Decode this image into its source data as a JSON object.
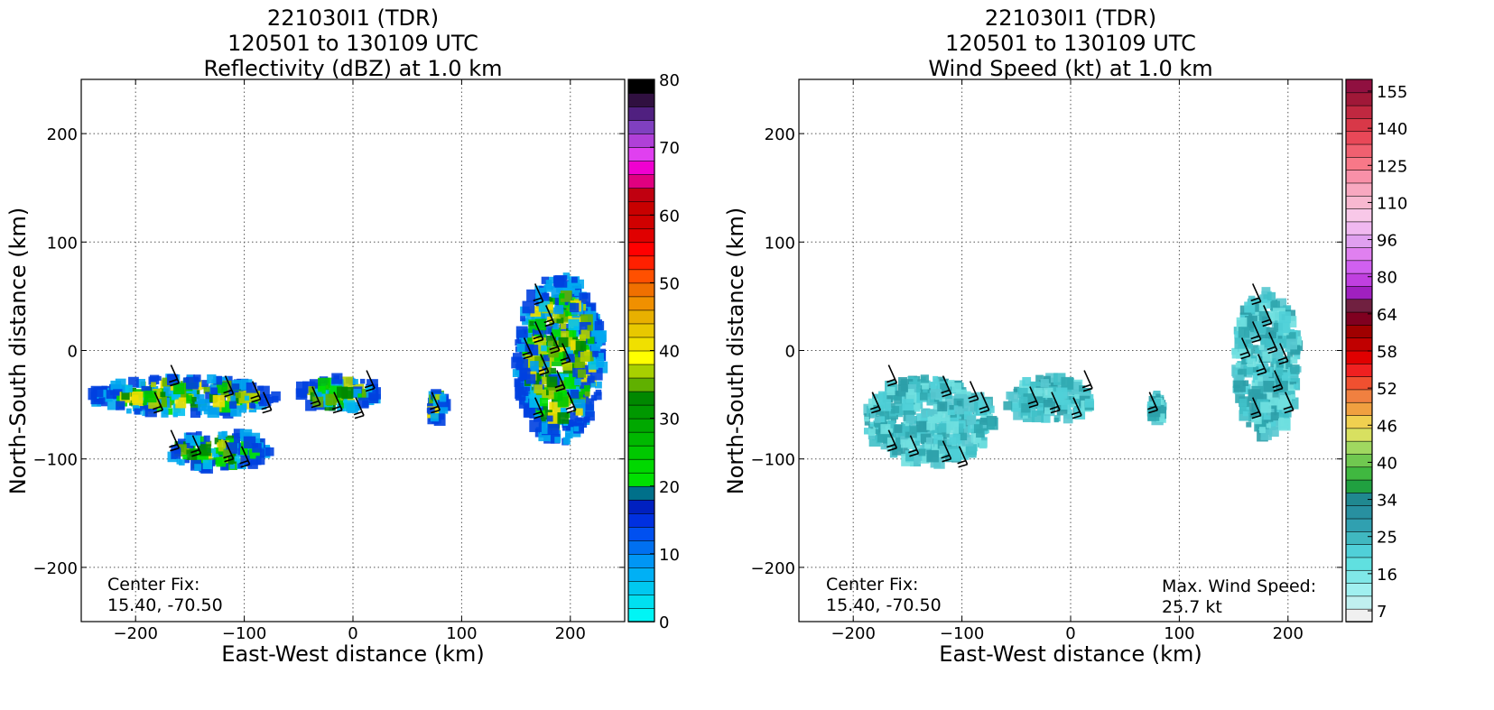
{
  "panels": [
    {
      "id": "reflectivity",
      "title_line1": "221030I1 (TDR)",
      "title_line2": "120501 to 130109 UTC",
      "title_line3": "Reflectivity (dBZ) at 1.0 km",
      "xlabel": "East-West distance (km)",
      "ylabel": "North-South distance (km)",
      "center_fix_label": "Center Fix:",
      "center_fix_value": "15.40, -70.50"
    },
    {
      "id": "windspeed",
      "title_line1": "221030I1 (TDR)",
      "title_line2": "120501 to 130109 UTC",
      "title_line3": "Wind Speed (kt) at 1.0 km",
      "xlabel": "East-West distance (km)",
      "ylabel": "North-South distance (km)",
      "center_fix_label": "Center Fix:",
      "center_fix_value": "15.40, -70.50",
      "max_wind_label": "Max. Wind Speed:",
      "max_wind_value": "25.7 kt"
    }
  ],
  "chart_data": [
    {
      "type": "heatmap",
      "title": "221030I1 (TDR) 120501 to 130109 UTC Reflectivity (dBZ) at 1.0 km",
      "xlabel": "East-West distance (km)",
      "ylabel": "North-South distance (km)",
      "xlim": [
        -250,
        250
      ],
      "ylim": [
        -250,
        250
      ],
      "xticks": [
        -200,
        -100,
        0,
        100,
        200
      ],
      "yticks": [
        -200,
        -100,
        0,
        100,
        200
      ],
      "grid": true,
      "colorbar": {
        "label_values": [
          0,
          10,
          20,
          30,
          40,
          50,
          60,
          70,
          80
        ],
        "range": [
          0,
          80
        ],
        "colors": [
          "#00f5f5",
          "#00e0f0",
          "#00c8f0",
          "#00b0f5",
          "#0096f5",
          "#0070f0",
          "#0050f0",
          "#0030e0",
          "#0020c0",
          "#00708a",
          "#00e000",
          "#00d800",
          "#00c800",
          "#00b800",
          "#00a800",
          "#009800",
          "#008800",
          "#60b000",
          "#a8d000",
          "#ffff00",
          "#f0e000",
          "#e8c800",
          "#e8b000",
          "#f09000",
          "#f07000",
          "#ff5000",
          "#ff2000",
          "#ff0000",
          "#e00000",
          "#d00000",
          "#c80000",
          "#c00010",
          "#e00080",
          "#f000d0",
          "#e040f0",
          "#b040d8",
          "#8040c0",
          "#502080",
          "#301040",
          "#000000"
        ]
      },
      "echo_regions": [
        {
          "x": [
            -240,
            -70
          ],
          "y": [
            -25,
            -60
          ],
          "dbz_range": [
            10,
            35
          ]
        },
        {
          "x": [
            -170,
            -75
          ],
          "y": [
            -75,
            -110
          ],
          "dbz_range": [
            10,
            35
          ]
        },
        {
          "x": [
            -50,
            25
          ],
          "y": [
            -25,
            -55
          ],
          "dbz_range": [
            5,
            35
          ]
        },
        {
          "x": [
            70,
            85
          ],
          "y": [
            -40,
            -65
          ],
          "dbz_range": [
            15,
            40
          ]
        },
        {
          "x": [
            150,
            230
          ],
          "y": [
            70,
            -85
          ],
          "dbz_range": [
            10,
            42
          ]
        }
      ],
      "annotations": [
        "Center Fix:",
        "15.40, -70.50"
      ]
    },
    {
      "type": "heatmap",
      "title": "221030I1 (TDR) 120501 to 130109 UTC Wind Speed (kt) at 1.0 km",
      "xlabel": "East-West distance (km)",
      "ylabel": "North-South distance (km)",
      "xlim": [
        -250,
        250
      ],
      "ylim": [
        -250,
        250
      ],
      "xticks": [
        -200,
        -100,
        0,
        100,
        200
      ],
      "yticks": [
        -200,
        -100,
        0,
        100,
        200
      ],
      "grid": true,
      "colorbar": {
        "label_values": [
          7,
          16,
          25,
          34,
          40,
          46,
          52,
          58,
          64,
          80,
          96,
          110,
          125,
          140,
          155
        ],
        "colors": [
          "#f0f0f0",
          "#c0f0f0",
          "#a0f0f0",
          "#80e8e8",
          "#60e0e0",
          "#50d0d8",
          "#40b8c0",
          "#30a0b0",
          "#2890a0",
          "#208890",
          "#20a040",
          "#40b840",
          "#70c850",
          "#a0d860",
          "#d8e060",
          "#f0d050",
          "#f0a040",
          "#f08040",
          "#f05030",
          "#f02020",
          "#e00000",
          "#c00000",
          "#a00000",
          "#800020",
          "#702040",
          "#a020c0",
          "#c040e0",
          "#d060f0",
          "#e080f0",
          "#e0a0f0",
          "#f0b8f0",
          "#f8c8e8",
          "#f8b8d0",
          "#f8a8c0",
          "#f890a8",
          "#f87888",
          "#f06070",
          "#e84858",
          "#d83848",
          "#c02840",
          "#a01838",
          "#901040"
        ]
      },
      "wind_regions": [
        {
          "x": [
            -190,
            -70
          ],
          "y": [
            -25,
            -105
          ],
          "kt_range": [
            7,
            25
          ]
        },
        {
          "x": [
            -60,
            20
          ],
          "y": [
            -25,
            -65
          ],
          "kt_range": [
            16,
            25
          ]
        },
        {
          "x": [
            75,
            85
          ],
          "y": [
            -40,
            -65
          ],
          "kt_range": [
            7,
            16
          ]
        },
        {
          "x": [
            150,
            210
          ],
          "y": [
            55,
            -80
          ],
          "kt_range": [
            7,
            16
          ]
        }
      ],
      "max_wind_kt": 25.7,
      "annotations": [
        "Center Fix:",
        "15.40, -70.50",
        "Max. Wind Speed:",
        "25.7 kt"
      ]
    }
  ],
  "wind_barbs": [
    {
      "x": -175,
      "y": -55
    },
    {
      "x": -160,
      "y": -30
    },
    {
      "x": -110,
      "y": -40
    },
    {
      "x": -85,
      "y": -45
    },
    {
      "x": -75,
      "y": -55
    },
    {
      "x": -30,
      "y": -50
    },
    {
      "x": -10,
      "y": -55
    },
    {
      "x": 10,
      "y": -60
    },
    {
      "x": 20,
      "y": -35
    },
    {
      "x": 80,
      "y": -55
    },
    {
      "x": -160,
      "y": -90
    },
    {
      "x": -140,
      "y": -95
    },
    {
      "x": -110,
      "y": -100
    },
    {
      "x": -95,
      "y": -105
    },
    {
      "x": 175,
      "y": 45
    },
    {
      "x": 185,
      "y": 25
    },
    {
      "x": 175,
      "y": 10
    },
    {
      "x": 190,
      "y": 0
    },
    {
      "x": 200,
      "y": -10
    },
    {
      "x": 180,
      "y": -20
    },
    {
      "x": 195,
      "y": -35
    },
    {
      "x": 205,
      "y": -55
    },
    {
      "x": 175,
      "y": -60
    },
    {
      "x": 165,
      "y": -5
    }
  ]
}
